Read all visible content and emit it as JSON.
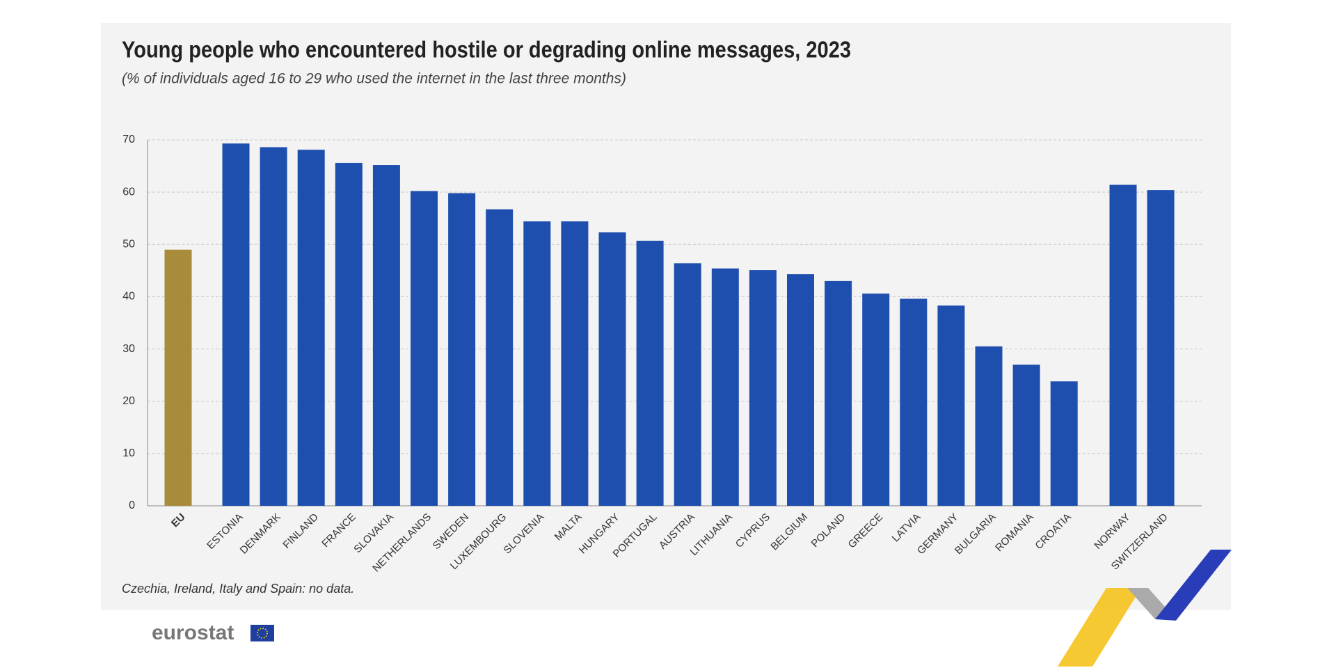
{
  "chart_data": {
    "type": "bar",
    "title": "Young people who encountered hostile or degrading online messages, 2023",
    "subtitle": "(% of individuals aged 16 to 29 who used the internet in the last three months)",
    "categories": [
      "EU",
      "ESTONIA",
      "DENMARK",
      "FINLAND",
      "FRANCE",
      "SLOVAKIA",
      "NETHERLANDS",
      "SWEDEN",
      "LUXEMBOURG",
      "SLOVENIA",
      "MALTA",
      "HUNGARY",
      "PORTUGAL",
      "AUSTRIA",
      "LITHUANIA",
      "CYPRUS",
      "BELGIUM",
      "POLAND",
      "GREECE",
      "LATVIA",
      "GERMANY",
      "BULGARIA",
      "ROMANIA",
      "CROATIA",
      "NORWAY",
      "SWITZERLAND"
    ],
    "values": [
      49.0,
      69.3,
      68.6,
      68.1,
      65.6,
      65.2,
      60.2,
      59.8,
      56.7,
      54.4,
      54.4,
      52.3,
      50.7,
      46.4,
      45.4,
      45.1,
      44.3,
      43.0,
      40.6,
      39.6,
      38.3,
      30.5,
      27.0,
      23.8,
      61.4,
      60.4
    ],
    "colors": [
      "#a88c3c",
      "#1f4fae",
      "#1f4fae",
      "#1f4fae",
      "#1f4fae",
      "#1f4fae",
      "#1f4fae",
      "#1f4fae",
      "#1f4fae",
      "#1f4fae",
      "#1f4fae",
      "#1f4fae",
      "#1f4fae",
      "#1f4fae",
      "#1f4fae",
      "#1f4fae",
      "#1f4fae",
      "#1f4fae",
      "#1f4fae",
      "#1f4fae",
      "#1f4fae",
      "#1f4fae",
      "#1f4fae",
      "#1f4fae",
      "#1f4fae",
      "#1f4fae"
    ],
    "ylim": [
      0,
      70
    ],
    "yticks": [
      0,
      10,
      20,
      30,
      40,
      50,
      60,
      70
    ],
    "grid": true,
    "footnote": "Czechia, Ireland, Italy and Spain: no data.",
    "logo": "eurostat"
  }
}
